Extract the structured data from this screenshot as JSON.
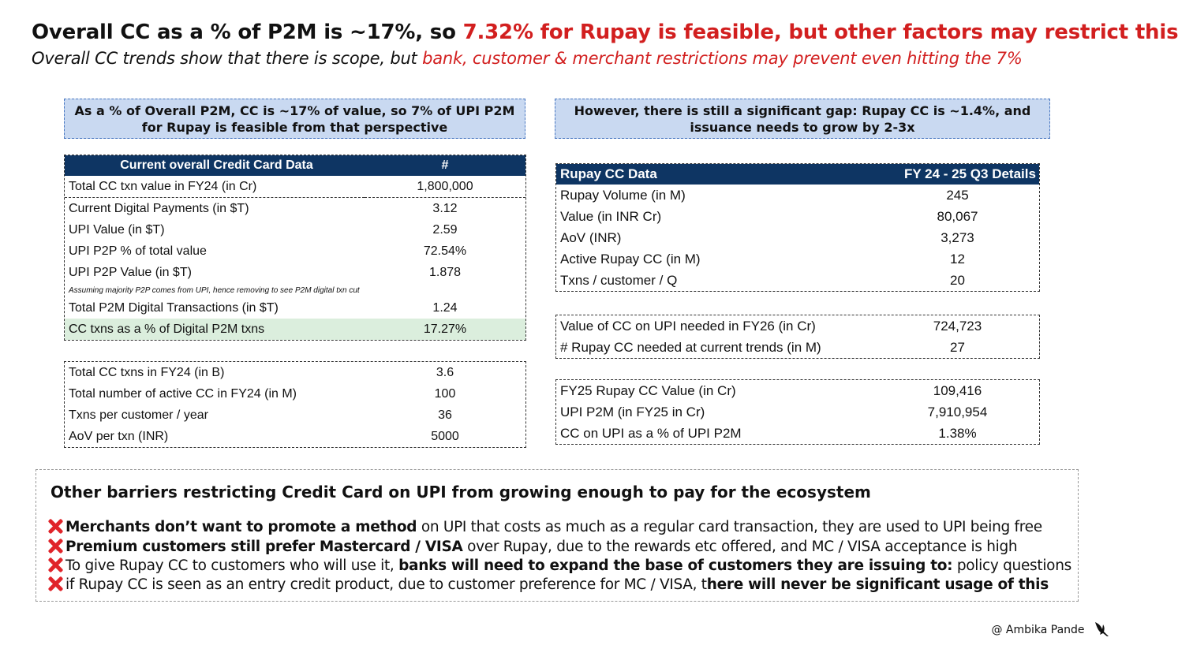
{
  "header": {
    "title_black": "Overall CC as a % of P2M is ~17%, so ",
    "title_red": "7.32% for Rupay is feasible, but other factors may restrict this",
    "subtitle_black": "Overall CC trends show that there is scope, but ",
    "subtitle_red": "bank, customer & merchant restrictions may prevent even hitting the 7%"
  },
  "callouts": {
    "left": "As a % of Overall P2M, CC is ~17% of value, so 7% of UPI P2M for Rupay is feasible from that perspective",
    "right": "However, there is still a significant gap: Rupay CC is ~1.4%, and issuance needs to grow by 2-3x"
  },
  "cc_table": {
    "headers": [
      "Current overall Credit Card Data",
      "#"
    ],
    "rows": [
      [
        "Total CC txn value in FY24 (in Cr)",
        "1,800,000"
      ],
      [
        "Current Digital Payments (in $T)",
        "3.12"
      ],
      [
        "UPI Value (in $T)",
        "2.59"
      ],
      [
        "UPI P2P % of total value",
        "72.54%"
      ],
      [
        "UPI P2P Value (in $T)",
        "1.878"
      ],
      [
        "Assuming majority P2P comes from UPI, hence removing to see P2M digital txn cut",
        ""
      ],
      [
        "Total P2M Digital Transactions (in $T)",
        "1.24"
      ],
      [
        "CC txns as a % of Digital P2M txns",
        "17.27%"
      ]
    ]
  },
  "cc_table2": {
    "rows": [
      [
        "Total CC txns in FY24 (in B)",
        "3.6"
      ],
      [
        "Total number of active CC in FY24 (in M)",
        "100"
      ],
      [
        "Txns per customer / year",
        "36"
      ],
      [
        "AoV per txn (INR)",
        "5000"
      ]
    ]
  },
  "rupay_table": {
    "headers": [
      "Rupay CC Data",
      "FY 24 - 25 Q3 Details"
    ],
    "rows": [
      [
        "Rupay Volume (in M)",
        "245"
      ],
      [
        "Value (in INR Cr)",
        "80,067"
      ],
      [
        "AoV (INR)",
        "3,273"
      ],
      [
        "Active Rupay CC (in M)",
        "12"
      ],
      [
        "Txns / customer / Q",
        "20"
      ]
    ]
  },
  "rupay_table2": {
    "rows": [
      [
        "Value of CC on UPI needed in FY26 (in Cr)",
        "724,723"
      ],
      [
        "# Rupay CC needed at current trends (in M)",
        "27"
      ]
    ]
  },
  "rupay_table3": {
    "rows": [
      [
        "FY25 Rupay CC Value (in Cr)",
        "109,416"
      ],
      [
        "UPI P2M (in FY25 in Cr)",
        "7,910,954"
      ],
      [
        "CC on UPI as a % of UPI P2M",
        "1.38%"
      ]
    ]
  },
  "barriers": {
    "title": "Other barriers restricting Credit Card on UPI from growing enough to pay for the ecosystem",
    "items": [
      {
        "b1": "Merchants don’t want to promote a method",
        "t1": " on UPI that costs as much as a regular card transaction, they are used to UPI being free",
        "b2": "",
        "t2": ""
      },
      {
        "b1": "Premium customers still prefer Mastercard / VISA",
        "t1": " over Rupay, due to the rewards etc offered, and MC / VISA acceptance is high",
        "b2": "",
        "t2": ""
      },
      {
        "b1": "",
        "t1": "To give Rupay CC to customers who will use it, ",
        "b2": "banks will need to expand the base of customers they are issuing to:",
        "t2": " policy questions"
      },
      {
        "b1": "",
        "t1": "if Rupay CC is seen as an entry credit product, due to customer preference for MC / VISA, t",
        "b2": "here will never be significant usage of this",
        "t2": ""
      }
    ],
    "icon": "cross-mark-icon"
  },
  "footer": {
    "author": "@ Ambika Pande",
    "logo": "bird-logo-icon"
  },
  "colors": {
    "accent_red": "#d21f1f",
    "table_header": "#0e3563",
    "callout_bg": "#c9d9f1",
    "highlight_row": "#dbeedd"
  }
}
